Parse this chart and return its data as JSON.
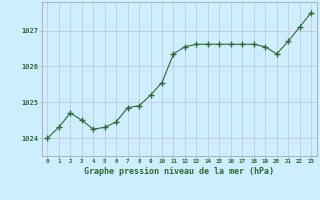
{
  "x": [
    0,
    1,
    2,
    3,
    4,
    5,
    6,
    7,
    8,
    9,
    10,
    11,
    12,
    13,
    14,
    15,
    16,
    17,
    18,
    19,
    20,
    21,
    22,
    23
  ],
  "y": [
    1024.0,
    1024.3,
    1024.7,
    1024.5,
    1024.25,
    1024.3,
    1024.45,
    1024.85,
    1024.9,
    1025.2,
    1025.55,
    1026.35,
    1026.55,
    1026.62,
    1026.62,
    1026.62,
    1026.62,
    1026.62,
    1026.62,
    1026.55,
    1026.35,
    1026.7,
    1027.1,
    1027.5
  ],
  "line_color": "#2d6a2d",
  "marker": "+",
  "marker_size": 4,
  "marker_linewidth": 1.0,
  "background_color": "#cceeff",
  "grid_color": "#c8c8d8",
  "xlabel": "Graphe pression niveau de la mer (hPa)",
  "xlabel_color": "#2d6a2d",
  "tick_color": "#2d6a2d",
  "yticks": [
    1024,
    1025,
    1026,
    1027
  ],
  "ylim": [
    1023.5,
    1027.8
  ],
  "xlim": [
    -0.5,
    23.5
  ],
  "title": ""
}
